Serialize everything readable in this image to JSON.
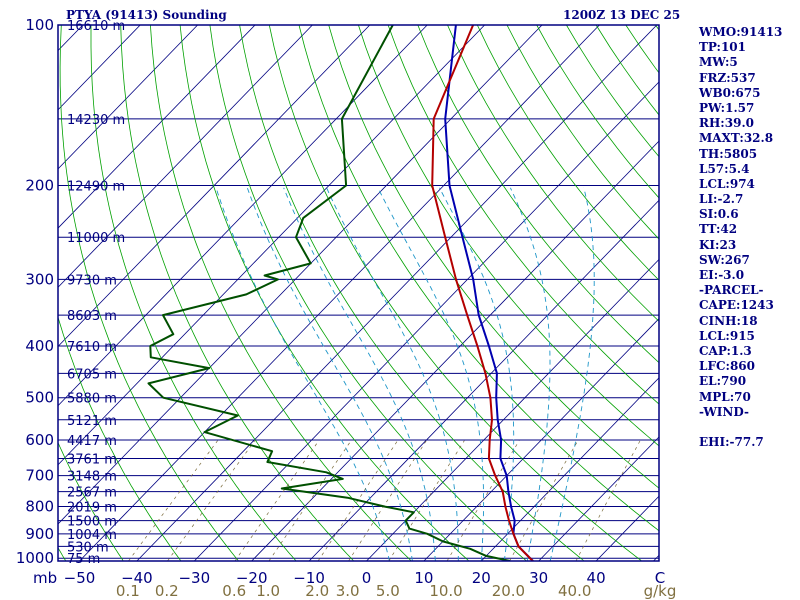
{
  "chart_data": {
    "type": "line",
    "title": "PTYA (91413) Sounding",
    "date": "1200Z 13 DEC 25",
    "x_axis": {
      "label": "mb",
      "temperature_ticks": [
        -50,
        -40,
        -30,
        -20,
        -10,
        0,
        10,
        20,
        30,
        40,
        "C"
      ],
      "mixing_ratio_label": "g/kg",
      "mixing_ratio_ticks": [
        "0.1",
        "0.2",
        "0.6",
        "1.0",
        "2.0",
        "3.0",
        "5.0",
        "10.0",
        "20.0",
        "40.0"
      ]
    },
    "pressure_axis": {
      "ticks": [
        100,
        200,
        300,
        400,
        500,
        600,
        700,
        800,
        900,
        1000
      ],
      "scale": "log"
    },
    "height_labels": [
      {
        "p": 100,
        "label": "16610 m"
      },
      {
        "p": 150,
        "label": "14230 m"
      },
      {
        "p": 200,
        "label": "12490 m"
      },
      {
        "p": 250,
        "label": "11000 m"
      },
      {
        "p": 300,
        "label": "9730 m"
      },
      {
        "p": 350,
        "label": "8603 m"
      },
      {
        "p": 400,
        "label": "7610 m"
      },
      {
        "p": 450,
        "label": "6705 m"
      },
      {
        "p": 500,
        "label": "5880 m"
      },
      {
        "p": 550,
        "label": "5121 m"
      },
      {
        "p": 600,
        "label": "4417 m"
      },
      {
        "p": 650,
        "label": "3761 m"
      },
      {
        "p": 700,
        "label": "3148 m"
      },
      {
        "p": 750,
        "label": "2567 m"
      },
      {
        "p": 800,
        "label": "2019 m"
      },
      {
        "p": 850,
        "label": "1500 m"
      },
      {
        "p": 900,
        "label": "1004 m"
      },
      {
        "p": 950,
        "label": "530 m"
      },
      {
        "p": 1000,
        "label": "75 m"
      }
    ],
    "series": [
      {
        "key": "temperature",
        "color": "#b40000",
        "points": [
          [
            100,
            -72
          ],
          [
            150,
            -63
          ],
          [
            200,
            -52
          ],
          [
            250,
            -41
          ],
          [
            300,
            -32
          ],
          [
            350,
            -24
          ],
          [
            400,
            -17
          ],
          [
            450,
            -11
          ],
          [
            500,
            -6
          ],
          [
            550,
            -2
          ],
          [
            600,
            1
          ],
          [
            650,
            4
          ],
          [
            700,
            8
          ],
          [
            750,
            12
          ],
          [
            800,
            15
          ],
          [
            850,
            18
          ],
          [
            900,
            21
          ],
          [
            950,
            24
          ],
          [
            1000,
            28
          ],
          [
            1012,
            29
          ]
        ]
      },
      {
        "key": "dewpoint",
        "color": "#005000",
        "points": [
          [
            100,
            -86
          ],
          [
            150,
            -79
          ],
          [
            200,
            -67
          ],
          [
            230,
            -69
          ],
          [
            250,
            -67
          ],
          [
            280,
            -60
          ],
          [
            295,
            -66
          ],
          [
            300,
            -63
          ],
          [
            320,
            -66
          ],
          [
            350,
            -77
          ],
          [
            380,
            -72
          ],
          [
            400,
            -74
          ],
          [
            420,
            -72
          ],
          [
            440,
            -60
          ],
          [
            470,
            -68
          ],
          [
            500,
            -63
          ],
          [
            540,
            -47
          ],
          [
            580,
            -50
          ],
          [
            630,
            -35
          ],
          [
            660,
            -34
          ],
          [
            690,
            -22
          ],
          [
            710,
            -18
          ],
          [
            740,
            -27
          ],
          [
            770,
            -14
          ],
          [
            800,
            -6
          ],
          [
            820,
            0
          ],
          [
            850,
            0
          ],
          [
            880,
            2
          ],
          [
            900,
            6
          ],
          [
            930,
            10
          ],
          [
            960,
            16
          ],
          [
            990,
            20
          ],
          [
            1012,
            25
          ]
        ]
      },
      {
        "key": "parcel",
        "color": "#0000b0",
        "points": [
          [
            100,
            -75
          ],
          [
            150,
            -61
          ],
          [
            200,
            -49
          ],
          [
            250,
            -38
          ],
          [
            300,
            -29
          ],
          [
            350,
            -22
          ],
          [
            400,
            -15
          ],
          [
            450,
            -9
          ],
          [
            500,
            -5
          ],
          [
            550,
            -1
          ],
          [
            600,
            3
          ],
          [
            650,
            6
          ],
          [
            700,
            10
          ],
          [
            750,
            13
          ],
          [
            800,
            16
          ],
          [
            850,
            19
          ],
          [
            900,
            21
          ],
          [
            950,
            24
          ],
          [
            1012,
            29
          ]
        ]
      }
    ]
  },
  "indices": [
    "WMO:91413",
    "TP:101",
    "MW:5",
    "FRZ:537",
    "WB0:675",
    "PW:1.57",
    "RH:39.0",
    "MAXT:32.8",
    "TH:5805",
    "L57:5.4",
    "LCL:974",
    "LI:-2.7",
    "SI:0.6",
    "TT:42",
    "KI:23",
    "SW:267",
    "EI:-3.0",
    "-PARCEL-",
    "CAPE:1243",
    "CINH:18",
    "LCL:915",
    "CAP:1.3",
    "LFC:860",
    "EL:790",
    "MPL:70",
    "-WIND-",
    "",
    "EHI:-77.7"
  ],
  "colors": {
    "isobar": "#000080",
    "frame": "#000080",
    "isotherm": "#000080",
    "dry_adiabat": "#00a000",
    "moist_adiabat": "#1e96c8",
    "mixing_ratio": "#7a6a3a",
    "text": "#000080",
    "mixing_ratio_text": "#807040"
  }
}
